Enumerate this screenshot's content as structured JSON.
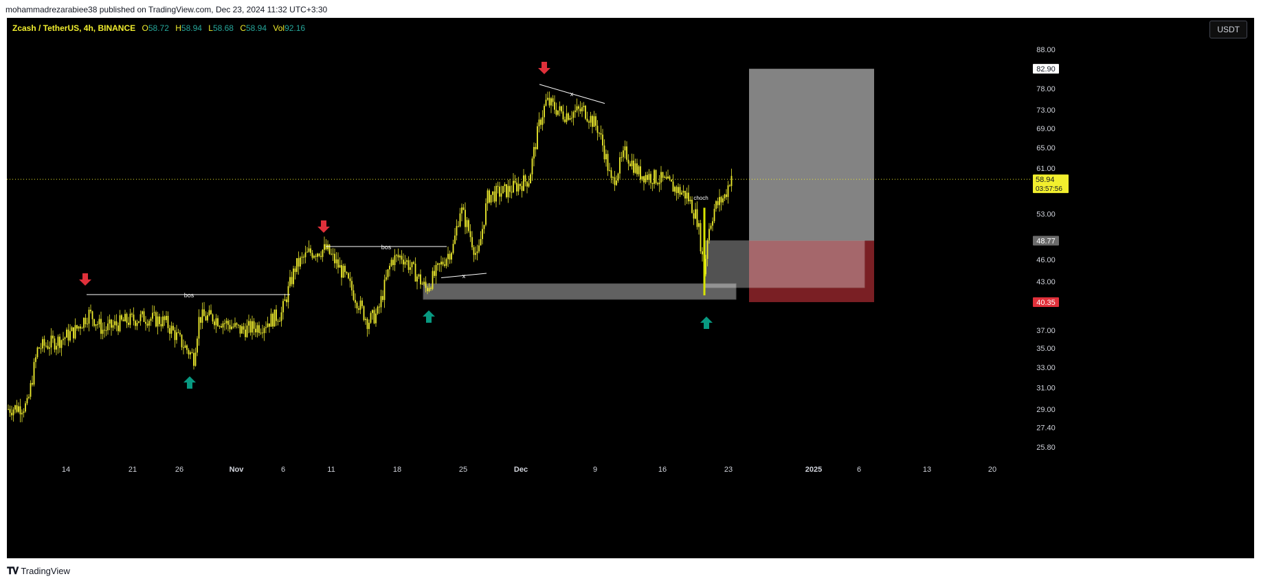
{
  "header": {
    "published_text": "mohammadrezarabiee38 published on TradingView.com, Dec 23, 2024 11:32 UTC+3:30"
  },
  "legend": {
    "symbol": "Zcash / TetherUS, 4h, BINANCE",
    "open_label": "O",
    "open": "58.72",
    "high_label": "H",
    "high": "58.94",
    "low_label": "L",
    "low": "58.68",
    "close_label": "C",
    "close": "58.94",
    "vol_label": "Vol",
    "vol": "92.16"
  },
  "currency_button": "USDT",
  "footer": {
    "brand": "TradingView"
  },
  "colors": {
    "candle": "#f2ef2e",
    "up_arrow": "#089981",
    "down_arrow": "#e0303a",
    "target_zone": "#8a8a8a",
    "stop_zone": "#c1484f",
    "price_line": "#f2ef2e"
  },
  "price_axis": {
    "ticks": [
      "88.00",
      "82.90",
      "78.00",
      "73.00",
      "69.00",
      "65.00",
      "61.00",
      "58.94",
      "53.00",
      "48.77",
      "46.00",
      "43.00",
      "40.35",
      "37.00",
      "35.00",
      "33.00",
      "31.00",
      "29.00",
      "27.40",
      "25.80"
    ],
    "current_price": "58.94",
    "countdown": "03:57:56",
    "target_label": "82.90",
    "entry_label": "48.77",
    "stop_label": "40.35"
  },
  "time_axis": {
    "ticks": [
      "14",
      "21",
      "26",
      "Nov",
      "6",
      "11",
      "18",
      "25",
      "Dec",
      "9",
      "16",
      "23",
      "2025",
      "6",
      "13",
      "20"
    ]
  },
  "annotations": {
    "bos_1": "bos",
    "bos_2": "bos",
    "x_1": "x",
    "x_2": "x",
    "choch": "choch"
  },
  "chart_data": {
    "type": "candlestick",
    "title": "",
    "xlabel": "",
    "ylabel": "",
    "ylim": [
      24.5,
      92
    ],
    "scale": "log",
    "x": [
      "Oct 8",
      "Oct 10",
      "Oct 12",
      "Oct 14",
      "Oct 16",
      "Oct 18",
      "Oct 20",
      "Oct 22",
      "Oct 24",
      "Oct 26",
      "Oct 28",
      "Oct 30",
      "Nov 1",
      "Nov 3",
      "Nov 5",
      "Nov 7",
      "Nov 9",
      "Nov 11",
      "Nov 13",
      "Nov 15",
      "Nov 17",
      "Nov 19",
      "Nov 21",
      "Nov 23",
      "Nov 25",
      "Nov 27",
      "Nov 29",
      "Dec 1",
      "Dec 3",
      "Dec 5",
      "Dec 7",
      "Dec 9",
      "Dec 11",
      "Dec 13",
      "Dec 15",
      "Dec 17",
      "Dec 19",
      "Dec 21",
      "Dec 23"
    ],
    "close": [
      29.0,
      29.5,
      34.5,
      36.0,
      38.5,
      36.5,
      38.0,
      38.0,
      37.5,
      34.5,
      38.5,
      37.0,
      37.0,
      37.5,
      39.0,
      46.0,
      48.0,
      45.0,
      38.5,
      39.5,
      47.0,
      44.0,
      42.5,
      46.5,
      52.0,
      47.0,
      57.0,
      58.0,
      75.0,
      71.0,
      72.0,
      60.0,
      62.0,
      59.0,
      59.0,
      56.0,
      43.0,
      54.0,
      58.94
    ]
  }
}
